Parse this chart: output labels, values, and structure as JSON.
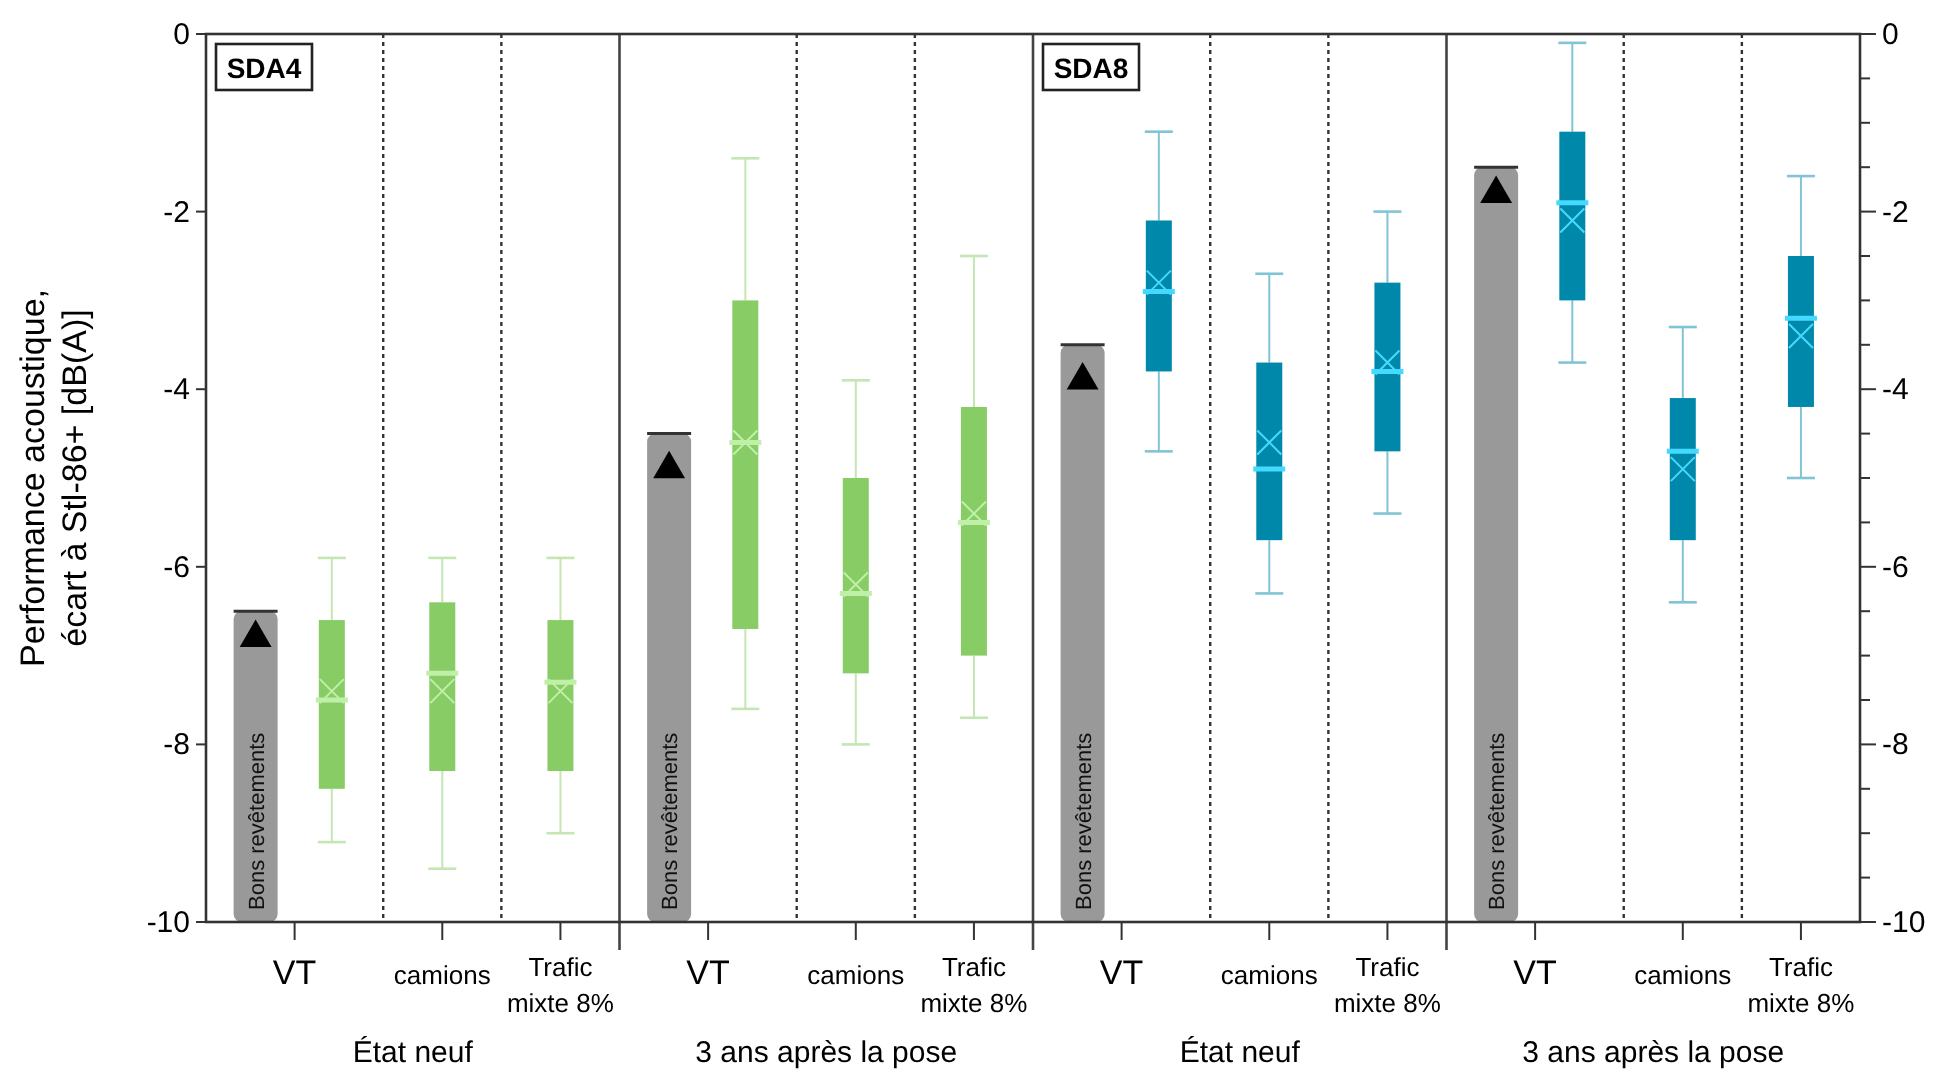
{
  "chart_data": {
    "type": "box",
    "ylabel": "Performance acoustique, écart à Stl-86+ [dB(A)]",
    "categories": [
      "VT",
      "camions",
      "Trafic mixte 8%",
      "VT",
      "camions",
      "Trafic mixte 8%",
      "VT",
      "camions",
      "Trafic mixte 8%",
      "VT",
      "camions",
      "Trafic mixte 8%"
    ],
    "ylim": [
      -10,
      0
    ],
    "yticks": [
      0,
      -2,
      -4,
      -6,
      -8,
      -10
    ],
    "y2lim": [
      -10,
      0
    ],
    "y2ticks": [
      0,
      {
        "value": -0.5,
        "label": null
      },
      {
        "value": -1,
        "label": null
      },
      {
        "value": -1.5,
        "label": null
      },
      -2,
      {
        "value": -2.5,
        "label": null
      },
      {
        "value": -3,
        "label": null
      },
      {
        "value": -3.5,
        "label": null
      },
      -4,
      {
        "value": -4.5,
        "label": null
      },
      {
        "value": -5,
        "label": null
      },
      {
        "value": -5.5,
        "label": null
      },
      -6,
      {
        "value": -6.5,
        "label": null
      },
      {
        "value": -7,
        "label": null
      },
      {
        "value": -7.5,
        "label": null
      },
      -8,
      {
        "value": -8.5,
        "label": null
      },
      {
        "value": -9,
        "label": null
      },
      {
        "value": -9.5,
        "label": null
      },
      -10
    ],
    "annotations": [
      "SDA4",
      "SDA8",
      "État neuf",
      "3 ans après la pose",
      "État neuf",
      "3 ans après la pose"
    ],
    "series": [
      {
        "type": "bar",
        "name": "Bons revêtements",
        "color": "#999999",
        "base": [
          -10,
          null,
          null,
          -10,
          null,
          null,
          -10,
          null,
          null,
          -10,
          null,
          null
        ],
        "values": [
          3.5,
          null,
          null,
          5.5,
          null,
          null,
          6.5,
          null,
          null,
          8.5,
          null,
          null
        ]
      },
      {
        "type": "scatter",
        "marker": "triangle",
        "color": "#000000",
        "values": [
          -6.8,
          null,
          null,
          -4.9,
          null,
          null,
          -3.9,
          null,
          null,
          -1.8,
          null,
          null
        ]
      },
      {
        "color": "#88cc66",
        "boxes": [
          {
            "low": -9.1,
            "q1": -8.5,
            "median": -7.5,
            "q3": -6.6,
            "high": -5.9,
            "mean": -7.4
          },
          {
            "low": -9.4,
            "q1": -8.3,
            "median": -7.2,
            "q3": -6.4,
            "high": -5.9,
            "mean": -7.4
          },
          {
            "low": -9.0,
            "q1": -8.3,
            "median": -7.3,
            "q3": -6.6,
            "high": -5.9,
            "mean": -7.4
          },
          {
            "low": -7.6,
            "q1": -6.7,
            "median": -4.6,
            "q3": -3.0,
            "high": -1.4,
            "mean": -4.6
          },
          {
            "low": -8.0,
            "q1": -7.2,
            "median": -6.3,
            "q3": -5.0,
            "high": -3.9,
            "mean": -6.2
          },
          {
            "low": -7.7,
            "q1": -7.0,
            "median": -5.5,
            "q3": -4.2,
            "high": -2.5,
            "mean": -5.4
          },
          null,
          null,
          null,
          null,
          null,
          null
        ]
      },
      {
        "color": "#0088aa",
        "boxes": [
          null,
          null,
          null,
          null,
          null,
          null,
          {
            "low": -4.7,
            "q1": -3.8,
            "median": -2.9,
            "q3": -2.1,
            "high": -1.1,
            "mean": -2.8
          },
          {
            "low": -6.3,
            "q1": -5.7,
            "median": -4.9,
            "q3": -3.7,
            "high": -2.7,
            "mean": -4.6
          },
          {
            "low": -5.4,
            "q1": -4.7,
            "median": -3.8,
            "q3": -2.8,
            "high": -2.0,
            "mean": -3.7
          },
          {
            "low": -3.7,
            "q1": -3.0,
            "median": -1.9,
            "q3": -1.1,
            "high": -0.1,
            "mean": -2.1
          },
          {
            "low": -6.4,
            "q1": -5.7,
            "median": -4.7,
            "q3": -4.1,
            "high": -3.3,
            "mean": -4.9
          },
          {
            "low": -5.0,
            "q1": -4.2,
            "median": -3.2,
            "q3": -2.5,
            "high": -1.6,
            "mean": -3.4
          }
        ]
      }
    ]
  }
}
